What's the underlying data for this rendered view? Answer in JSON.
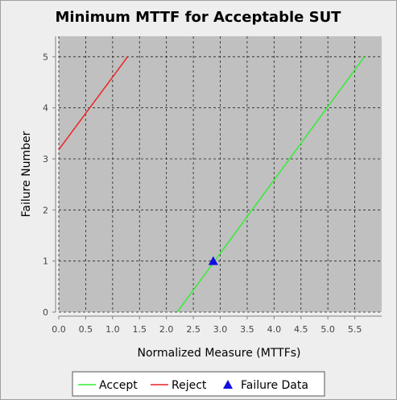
{
  "chart_data": {
    "type": "line",
    "title": "Minimum MTTF for Acceptable SUT",
    "xlabel": "Normalized Measure (MTTFs)",
    "ylabel": "Failure Number",
    "xlim": [
      0,
      6
    ],
    "ylim": [
      0,
      5.4
    ],
    "x_ticks": [
      "0.0",
      "0.5",
      "1.0",
      "1.5",
      "2.0",
      "2.5",
      "3.0",
      "3.5",
      "4.0",
      "4.5",
      "5.0",
      "5.5"
    ],
    "y_ticks": [
      "0",
      "1",
      "2",
      "3",
      "4",
      "5"
    ],
    "grid": true,
    "legend_position": "bottom",
    "series": [
      {
        "name": "Accept",
        "kind": "line",
        "color": "#33ee33",
        "x": [
          2.2,
          5.68
        ],
        "y": [
          0,
          5
        ]
      },
      {
        "name": "Reject",
        "kind": "line",
        "color": "#ee2222",
        "x": [
          0,
          1.28
        ],
        "y": [
          3.18,
          5
        ]
      },
      {
        "name": "Failure Data",
        "kind": "marker",
        "marker": "triangle",
        "color": "#1010dd",
        "x": [
          2.87
        ],
        "y": [
          1
        ]
      }
    ]
  }
}
